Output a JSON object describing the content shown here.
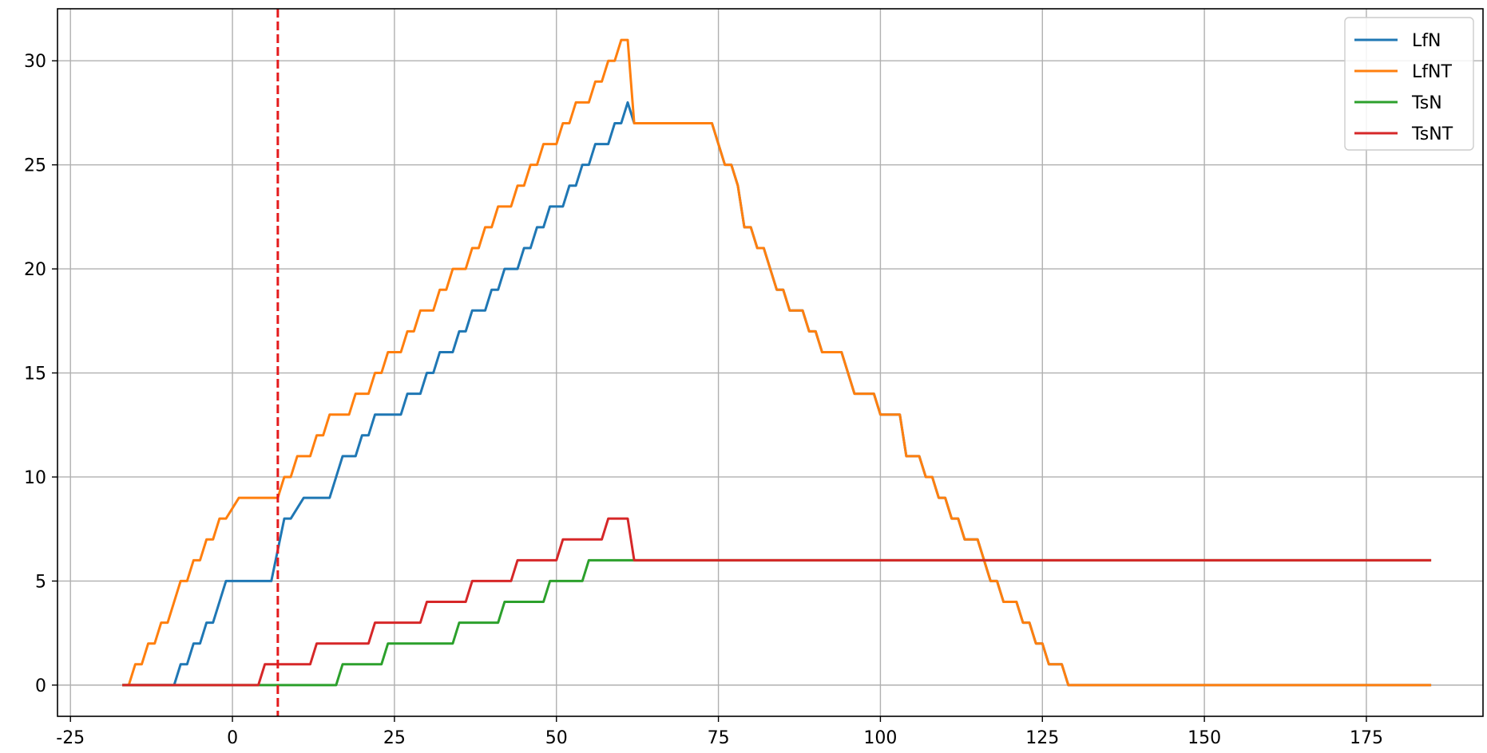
{
  "chart_data": {
    "type": "line",
    "title": "",
    "xlabel": "",
    "ylabel": "",
    "xlim": [
      -27,
      193
    ],
    "ylim": [
      -1.5,
      32.5
    ],
    "xticks": [
      -25,
      0,
      25,
      50,
      75,
      100,
      125,
      150,
      175
    ],
    "yticks": [
      0,
      5,
      10,
      15,
      20,
      25,
      30
    ],
    "grid": true,
    "legend_position": "top-right",
    "vline": {
      "x": 7,
      "color": "#e41a1c",
      "style": "dashed"
    },
    "series": [
      {
        "name": "LfN",
        "color": "#1f77b4",
        "points": [
          [
            -17,
            0
          ],
          [
            -9,
            0
          ],
          [
            -8,
            1
          ],
          [
            -7,
            1
          ],
          [
            -6,
            2
          ],
          [
            -5,
            2
          ],
          [
            -4,
            3
          ],
          [
            -3,
            3
          ],
          [
            -1,
            5
          ],
          [
            6,
            5
          ],
          [
            8,
            8
          ],
          [
            9,
            8
          ],
          [
            11,
            9
          ],
          [
            15,
            9
          ],
          [
            17,
            11
          ],
          [
            19,
            11
          ],
          [
            20,
            12
          ],
          [
            21,
            12
          ],
          [
            22,
            13
          ],
          [
            26,
            13
          ],
          [
            27,
            14
          ],
          [
            29,
            14
          ],
          [
            30,
            15
          ],
          [
            31,
            15
          ],
          [
            32,
            16
          ],
          [
            34,
            16
          ],
          [
            35,
            17
          ],
          [
            36,
            17
          ],
          [
            37,
            18
          ],
          [
            39,
            18
          ],
          [
            40,
            19
          ],
          [
            41,
            19
          ],
          [
            42,
            20
          ],
          [
            44,
            20
          ],
          [
            45,
            21
          ],
          [
            46,
            21
          ],
          [
            47,
            22
          ],
          [
            48,
            22
          ],
          [
            49,
            23
          ],
          [
            51,
            23
          ],
          [
            52,
            24
          ],
          [
            53,
            24
          ],
          [
            54,
            25
          ],
          [
            55,
            25
          ],
          [
            56,
            26
          ],
          [
            58,
            26
          ],
          [
            59,
            27
          ],
          [
            60,
            27
          ],
          [
            61,
            28
          ],
          [
            62,
            27
          ],
          [
            74,
            27
          ],
          [
            76,
            25
          ],
          [
            77,
            25
          ],
          [
            78,
            24
          ],
          [
            79,
            22
          ],
          [
            80,
            22
          ],
          [
            81,
            21
          ],
          [
            82,
            21
          ],
          [
            84,
            19
          ],
          [
            85,
            19
          ],
          [
            86,
            18
          ],
          [
            88,
            18
          ],
          [
            89,
            17
          ],
          [
            90,
            17
          ],
          [
            91,
            16
          ],
          [
            94,
            16
          ],
          [
            96,
            14
          ],
          [
            99,
            14
          ],
          [
            100,
            13
          ],
          [
            103,
            13
          ],
          [
            104,
            11
          ],
          [
            106,
            11
          ],
          [
            107,
            10
          ],
          [
            108,
            10
          ],
          [
            109,
            9
          ],
          [
            110,
            9
          ],
          [
            111,
            8
          ],
          [
            112,
            8
          ],
          [
            113,
            7
          ],
          [
            115,
            7
          ],
          [
            117,
            5
          ],
          [
            118,
            5
          ],
          [
            119,
            4
          ],
          [
            121,
            4
          ],
          [
            122,
            3
          ],
          [
            123,
            3
          ],
          [
            124,
            2
          ],
          [
            125,
            2
          ],
          [
            126,
            1
          ],
          [
            128,
            1
          ],
          [
            129,
            0
          ],
          [
            185,
            0
          ]
        ]
      },
      {
        "name": "LfNT",
        "color": "#ff7f0e",
        "points": [
          [
            -17,
            0
          ],
          [
            -16,
            0
          ],
          [
            -15,
            1
          ],
          [
            -14,
            1
          ],
          [
            -13,
            2
          ],
          [
            -12,
            2
          ],
          [
            -11,
            3
          ],
          [
            -10,
            3
          ],
          [
            -8,
            5
          ],
          [
            -7,
            5
          ],
          [
            -6,
            6
          ],
          [
            -5,
            6
          ],
          [
            -4,
            7
          ],
          [
            -3,
            7
          ],
          [
            -2,
            8
          ],
          [
            -1,
            8
          ],
          [
            1,
            9
          ],
          [
            7,
            9
          ],
          [
            8,
            10
          ],
          [
            9,
            10
          ],
          [
            10,
            11
          ],
          [
            12,
            11
          ],
          [
            13,
            12
          ],
          [
            14,
            12
          ],
          [
            15,
            13
          ],
          [
            18,
            13
          ],
          [
            19,
            14
          ],
          [
            21,
            14
          ],
          [
            22,
            15
          ],
          [
            23,
            15
          ],
          [
            24,
            16
          ],
          [
            26,
            16
          ],
          [
            27,
            17
          ],
          [
            28,
            17
          ],
          [
            29,
            18
          ],
          [
            31,
            18
          ],
          [
            32,
            19
          ],
          [
            33,
            19
          ],
          [
            34,
            20
          ],
          [
            36,
            20
          ],
          [
            37,
            21
          ],
          [
            38,
            21
          ],
          [
            39,
            22
          ],
          [
            40,
            22
          ],
          [
            41,
            23
          ],
          [
            43,
            23
          ],
          [
            44,
            24
          ],
          [
            45,
            24
          ],
          [
            46,
            25
          ],
          [
            47,
            25
          ],
          [
            48,
            26
          ],
          [
            50,
            26
          ],
          [
            51,
            27
          ],
          [
            52,
            27
          ],
          [
            53,
            28
          ],
          [
            55,
            28
          ],
          [
            56,
            29
          ],
          [
            57,
            29
          ],
          [
            58,
            30
          ],
          [
            59,
            30
          ],
          [
            60,
            31
          ],
          [
            61,
            31
          ],
          [
            62,
            27
          ],
          [
            74,
            27
          ],
          [
            76,
            25
          ],
          [
            77,
            25
          ],
          [
            78,
            24
          ],
          [
            79,
            22
          ],
          [
            80,
            22
          ],
          [
            81,
            21
          ],
          [
            82,
            21
          ],
          [
            84,
            19
          ],
          [
            85,
            19
          ],
          [
            86,
            18
          ],
          [
            88,
            18
          ],
          [
            89,
            17
          ],
          [
            90,
            17
          ],
          [
            91,
            16
          ],
          [
            94,
            16
          ],
          [
            96,
            14
          ],
          [
            99,
            14
          ],
          [
            100,
            13
          ],
          [
            103,
            13
          ],
          [
            104,
            11
          ],
          [
            106,
            11
          ],
          [
            107,
            10
          ],
          [
            108,
            10
          ],
          [
            109,
            9
          ],
          [
            110,
            9
          ],
          [
            111,
            8
          ],
          [
            112,
            8
          ],
          [
            113,
            7
          ],
          [
            115,
            7
          ],
          [
            117,
            5
          ],
          [
            118,
            5
          ],
          [
            119,
            4
          ],
          [
            121,
            4
          ],
          [
            122,
            3
          ],
          [
            123,
            3
          ],
          [
            124,
            2
          ],
          [
            125,
            2
          ],
          [
            126,
            1
          ],
          [
            128,
            1
          ],
          [
            129,
            0
          ],
          [
            185,
            0
          ]
        ]
      },
      {
        "name": "TsN",
        "color": "#2ca02c",
        "points": [
          [
            -17,
            0
          ],
          [
            16,
            0
          ],
          [
            17,
            1
          ],
          [
            23,
            1
          ],
          [
            24,
            2
          ],
          [
            34,
            2
          ],
          [
            35,
            3
          ],
          [
            41,
            3
          ],
          [
            42,
            4
          ],
          [
            48,
            4
          ],
          [
            49,
            5
          ],
          [
            54,
            5
          ],
          [
            55,
            6
          ],
          [
            62,
            6
          ],
          [
            185,
            6
          ]
        ]
      },
      {
        "name": "TsNT",
        "color": "#d62728",
        "points": [
          [
            -17,
            0
          ],
          [
            4,
            0
          ],
          [
            5,
            1
          ],
          [
            12,
            1
          ],
          [
            13,
            2
          ],
          [
            21,
            2
          ],
          [
            22,
            3
          ],
          [
            29,
            3
          ],
          [
            30,
            4
          ],
          [
            36,
            4
          ],
          [
            37,
            5
          ],
          [
            43,
            5
          ],
          [
            44,
            6
          ],
          [
            50,
            6
          ],
          [
            51,
            7
          ],
          [
            57,
            7
          ],
          [
            58,
            8
          ],
          [
            61,
            8
          ],
          [
            62,
            6
          ],
          [
            185,
            6
          ]
        ]
      }
    ]
  }
}
